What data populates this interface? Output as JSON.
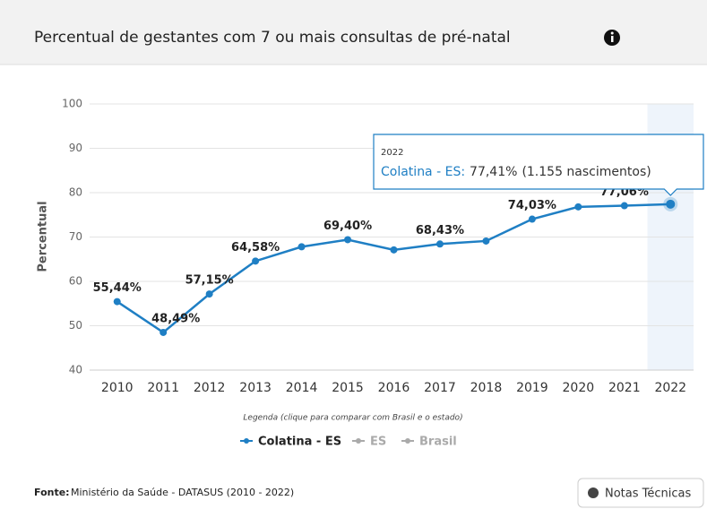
{
  "header": {
    "title": "Percentual de gestantes com 7 ou mais consultas de pré-natal"
  },
  "chart_data": {
    "type": "line",
    "categories": [
      "2010",
      "2011",
      "2012",
      "2013",
      "2014",
      "2015",
      "2016",
      "2017",
      "2018",
      "2019",
      "2020",
      "2021",
      "2022"
    ],
    "y_label": "Percentual",
    "series": [
      {
        "name": "Colatina - ES",
        "color": "#1f7fc4",
        "values": [
          55.44,
          48.49,
          57.15,
          64.58,
          67.8,
          69.4,
          67.1,
          68.43,
          69.1,
          74.03,
          76.8,
          77.06,
          77.41
        ],
        "value_labels": [
          "55,44%",
          "48,49%",
          "57,15%",
          "64,58%",
          null,
          "69,40%",
          null,
          "68,43%",
          null,
          "74,03%",
          null,
          "77,06%",
          "77,41%"
        ]
      }
    ],
    "ylim": [
      40,
      100
    ],
    "yticks": [
      40,
      50,
      60,
      70,
      80,
      90,
      100
    ],
    "grid": true,
    "legend_caption": "Legenda (clique para comparar com Brasil e o estado)",
    "legend_items": [
      "Colatina - ES",
      "ES",
      "Brasil"
    ],
    "tooltip": {
      "label": "Colatina - ES:",
      "extra": "(1.155 nascimentos)"
    }
  },
  "footer": {
    "source_label": "Fonte:",
    "source": "Ministério da Saúde - DATASUS (2010 - 2022)",
    "button": "Notas Técnicas"
  }
}
